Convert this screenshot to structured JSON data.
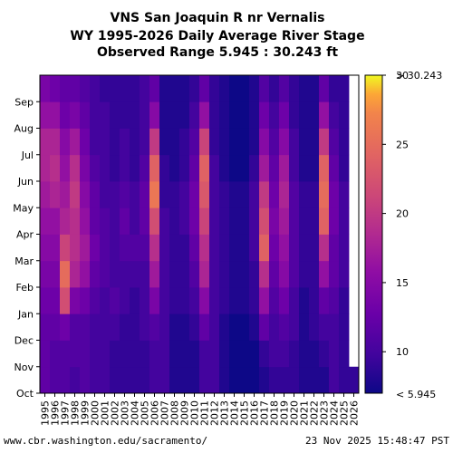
{
  "chart_data": {
    "type": "heatmap",
    "title_lines": [
      "VNS San Joaquin R nr Vernalis",
      "WY 1995-2026 Daily Average River Stage",
      "Observed Range 5.945 : 30.243 ft"
    ],
    "x_categories": [
      "1995",
      "1996",
      "1997",
      "1998",
      "1999",
      "2000",
      "2001",
      "2002",
      "2003",
      "2004",
      "2005",
      "2006",
      "2007",
      "2008",
      "2009",
      "2010",
      "2011",
      "2012",
      "2013",
      "2014",
      "2015",
      "2016",
      "2017",
      "2018",
      "2019",
      "2020",
      "2021",
      "2022",
      "2023",
      "2024",
      "2025",
      "2026"
    ],
    "y_labels": [
      "Oct",
      "Nov",
      "Dec",
      "Jan",
      "Feb",
      "Mar",
      "Apr",
      "May",
      "Jun",
      "Jul",
      "Aug",
      "Sep"
    ],
    "colorbar": {
      "min": 5.945,
      "max": 30.243,
      "range": [
        7,
        30
      ],
      "ticks": [
        10,
        15,
        20,
        25,
        30
      ],
      "top_label": "> 30.243",
      "bottom_label": "< 5.945",
      "colormap": "plasma"
    },
    "monthly_stage_ft": [
      [
        12,
        12,
        12,
        13,
        14,
        15,
        16,
        17,
        18,
        18,
        16,
        14
      ],
      [
        11,
        11,
        12,
        13,
        14,
        15,
        16,
        18,
        19,
        18,
        16,
        13
      ],
      [
        11,
        11,
        13,
        22,
        25,
        21,
        18,
        17,
        16,
        15,
        13,
        12
      ],
      [
        10,
        11,
        11,
        14,
        18,
        19,
        19,
        20,
        19,
        17,
        14,
        12
      ],
      [
        11,
        11,
        11,
        13,
        16,
        17,
        16,
        15,
        14,
        13,
        12,
        11
      ],
      [
        10,
        10,
        10,
        11,
        12,
        13,
        12,
        12,
        11,
        10,
        10,
        10
      ],
      [
        10,
        10,
        10,
        10,
        11,
        11,
        11,
        10,
        10,
        10,
        10,
        9
      ],
      [
        9,
        9,
        10,
        11,
        10,
        10,
        10,
        10,
        9,
        9,
        9,
        9
      ],
      [
        9,
        9,
        9,
        10,
        10,
        11,
        12,
        11,
        10,
        10,
        9,
        9
      ],
      [
        9,
        9,
        9,
        9,
        10,
        11,
        10,
        10,
        9,
        9,
        9,
        9
      ],
      [
        9,
        9,
        10,
        10,
        10,
        11,
        12,
        12,
        11,
        10,
        10,
        10
      ],
      [
        10,
        10,
        11,
        14,
        17,
        19,
        22,
        26,
        24,
        20,
        15,
        12
      ],
      [
        10,
        10,
        10,
        10,
        10,
        10,
        10,
        9,
        9,
        8,
        8,
        8
      ],
      [
        8,
        8,
        8,
        9,
        9,
        9,
        9,
        9,
        8,
        8,
        8,
        8
      ],
      [
        8,
        8,
        8,
        9,
        9,
        9,
        10,
        10,
        9,
        9,
        8,
        8
      ],
      [
        8,
        8,
        9,
        10,
        11,
        12,
        13,
        13,
        12,
        11,
        10,
        9
      ],
      [
        10,
        10,
        12,
        15,
        18,
        19,
        21,
        23,
        24,
        21,
        16,
        12
      ],
      [
        10,
        10,
        10,
        10,
        10,
        10,
        10,
        10,
        10,
        9,
        9,
        9
      ],
      [
        8,
        8,
        8,
        9,
        9,
        9,
        9,
        9,
        8,
        8,
        8,
        8
      ],
      [
        7,
        7,
        7,
        8,
        8,
        8,
        8,
        8,
        7,
        7,
        7,
        7
      ],
      [
        7,
        7,
        7,
        8,
        8,
        8,
        8,
        8,
        7,
        7,
        7,
        7
      ],
      [
        7,
        7,
        8,
        9,
        9,
        10,
        10,
        10,
        9,
        8,
        8,
        8
      ],
      [
        8,
        9,
        12,
        16,
        19,
        24,
        22,
        20,
        17,
        15,
        13,
        11
      ],
      [
        9,
        10,
        10,
        11,
        12,
        13,
        14,
        13,
        12,
        11,
        10,
        9
      ],
      [
        9,
        10,
        11,
        13,
        15,
        16,
        17,
        18,
        17,
        15,
        13,
        11
      ],
      [
        9,
        9,
        10,
        10,
        11,
        11,
        11,
        11,
        10,
        10,
        9,
        9
      ],
      [
        8,
        8,
        8,
        8,
        9,
        9,
        9,
        9,
        8,
        8,
        8,
        8
      ],
      [
        8,
        8,
        9,
        9,
        9,
        9,
        9,
        9,
        8,
        8,
        8,
        8
      ],
      [
        8,
        9,
        10,
        12,
        16,
        19,
        24,
        25,
        24,
        20,
        16,
        12
      ],
      [
        10,
        10,
        10,
        11,
        12,
        12,
        13,
        13,
        12,
        11,
        10,
        9
      ],
      [
        9,
        9,
        9,
        9,
        10,
        10,
        10,
        10,
        9,
        9,
        9,
        9
      ],
      [
        9,
        null,
        null,
        null,
        null,
        null,
        null,
        null,
        null,
        null,
        null,
        null
      ]
    ],
    "footer_left": "www.cbr.washington.edu/sacramento/",
    "footer_right": "23 Nov 2025 15:48:47 PST"
  }
}
